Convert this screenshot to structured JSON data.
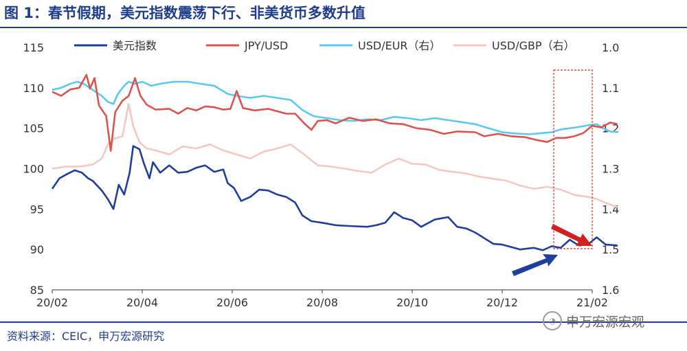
{
  "page": {
    "title": "图 1：春节假期，美元指数震荡下行、非美货币多数升值",
    "source": "资料来源：CEIC，申万宏源研究",
    "watermark": "申万宏源宏观"
  },
  "chart_data": {
    "type": "line",
    "x_ticks": [
      "20/02",
      "20/04",
      "20/06",
      "20/08",
      "20/10",
      "20/12",
      "21/02"
    ],
    "ylim_left": [
      85,
      115
    ],
    "yticks_left": [
      "85",
      "90",
      "95",
      "100",
      "105",
      "110",
      "115"
    ],
    "ylim_right": [
      1.6,
      1.0
    ],
    "yticks_right": [
      "1.0",
      "1.1",
      "1.2",
      "1.3",
      "1.4",
      "1.5",
      "1.6"
    ],
    "right_axis_inverted": true,
    "grid": false,
    "legend_position": "top",
    "series": [
      {
        "name": "美元指数",
        "axis": "left",
        "color": "#1f3d9a",
        "points": [
          [
            0,
            97.5
          ],
          [
            0.08,
            98.8
          ],
          [
            0.16,
            99.3
          ],
          [
            0.25,
            99.8
          ],
          [
            0.33,
            99.5
          ],
          [
            0.4,
            98.8
          ],
          [
            0.45,
            98.5
          ],
          [
            0.55,
            97.3
          ],
          [
            0.62,
            96.2
          ],
          [
            0.68,
            95.0
          ],
          [
            0.74,
            98.0
          ],
          [
            0.8,
            96.8
          ],
          [
            0.86,
            99.5
          ],
          [
            0.9,
            102.8
          ],
          [
            0.97,
            102.4
          ],
          [
            1.02,
            100.6
          ],
          [
            1.08,
            98.8
          ],
          [
            1.12,
            100.8
          ],
          [
            1.2,
            99.5
          ],
          [
            1.3,
            100.4
          ],
          [
            1.4,
            99.5
          ],
          [
            1.5,
            99.6
          ],
          [
            1.6,
            100.1
          ],
          [
            1.7,
            100.4
          ],
          [
            1.8,
            99.6
          ],
          [
            1.9,
            99.9
          ],
          [
            1.95,
            98.2
          ],
          [
            2.02,
            97.6
          ],
          [
            2.1,
            96.0
          ],
          [
            2.2,
            96.5
          ],
          [
            2.3,
            97.4
          ],
          [
            2.4,
            97.3
          ],
          [
            2.5,
            96.8
          ],
          [
            2.6,
            96.5
          ],
          [
            2.7,
            95.8
          ],
          [
            2.78,
            94.2
          ],
          [
            2.88,
            93.5
          ],
          [
            3.0,
            93.3
          ],
          [
            3.15,
            93.0
          ],
          [
            3.3,
            92.9
          ],
          [
            3.5,
            92.8
          ],
          [
            3.6,
            93.0
          ],
          [
            3.7,
            93.3
          ],
          [
            3.8,
            94.6
          ],
          [
            3.9,
            93.9
          ],
          [
            4.0,
            93.6
          ],
          [
            4.1,
            92.8
          ],
          [
            4.25,
            93.7
          ],
          [
            4.4,
            94.0
          ],
          [
            4.5,
            92.8
          ],
          [
            4.6,
            92.6
          ],
          [
            4.7,
            92.1
          ],
          [
            4.8,
            91.4
          ],
          [
            4.9,
            90.7
          ],
          [
            5.0,
            90.6
          ],
          [
            5.1,
            90.3
          ],
          [
            5.2,
            90.0
          ],
          [
            5.35,
            90.2
          ],
          [
            5.45,
            89.9
          ],
          [
            5.55,
            90.4
          ],
          [
            5.65,
            90.2
          ],
          [
            5.75,
            91.2
          ],
          [
            5.85,
            90.5
          ],
          [
            5.95,
            90.6
          ],
          [
            6.05,
            91.5
          ],
          [
            6.15,
            90.6
          ],
          [
            6.28,
            90.5
          ]
        ]
      },
      {
        "name": "JPY/USD",
        "axis": "left",
        "color": "#d9534f",
        "points": [
          [
            0,
            109.5
          ],
          [
            0.1,
            109.0
          ],
          [
            0.2,
            109.8
          ],
          [
            0.3,
            110.0
          ],
          [
            0.38,
            111.6
          ],
          [
            0.42,
            109.9
          ],
          [
            0.47,
            111.2
          ],
          [
            0.52,
            107.8
          ],
          [
            0.6,
            106.5
          ],
          [
            0.65,
            102.2
          ],
          [
            0.7,
            107.0
          ],
          [
            0.78,
            108.4
          ],
          [
            0.85,
            109.0
          ],
          [
            0.92,
            111.2
          ],
          [
            0.98,
            109.0
          ],
          [
            1.05,
            107.9
          ],
          [
            1.15,
            107.3
          ],
          [
            1.3,
            107.4
          ],
          [
            1.4,
            106.8
          ],
          [
            1.5,
            107.5
          ],
          [
            1.6,
            107.2
          ],
          [
            1.7,
            107.7
          ],
          [
            1.8,
            107.6
          ],
          [
            1.9,
            107.3
          ],
          [
            1.98,
            107.4
          ],
          [
            2.05,
            109.6
          ],
          [
            2.12,
            107.5
          ],
          [
            2.25,
            107.2
          ],
          [
            2.4,
            107.4
          ],
          [
            2.5,
            107.1
          ],
          [
            2.6,
            106.8
          ],
          [
            2.7,
            106.8
          ],
          [
            2.8,
            105.6
          ],
          [
            2.88,
            104.8
          ],
          [
            2.95,
            105.9
          ],
          [
            3.05,
            106.0
          ],
          [
            3.15,
            105.6
          ],
          [
            3.3,
            106.3
          ],
          [
            3.45,
            105.9
          ],
          [
            3.6,
            106.1
          ],
          [
            3.75,
            105.6
          ],
          [
            3.9,
            105.5
          ],
          [
            4.05,
            105.0
          ],
          [
            4.2,
            104.8
          ],
          [
            4.35,
            104.3
          ],
          [
            4.5,
            104.6
          ],
          [
            4.7,
            104.5
          ],
          [
            4.8,
            104.0
          ],
          [
            4.95,
            104.3
          ],
          [
            5.1,
            104.0
          ],
          [
            5.25,
            103.9
          ],
          [
            5.4,
            103.5
          ],
          [
            5.5,
            103.3
          ],
          [
            5.6,
            103.8
          ],
          [
            5.7,
            103.8
          ],
          [
            5.8,
            104.0
          ],
          [
            5.9,
            104.4
          ],
          [
            6.0,
            105.3
          ],
          [
            6.1,
            105.1
          ],
          [
            6.2,
            105.7
          ],
          [
            6.28,
            105.5
          ]
        ]
      },
      {
        "name": "USD/EUR（右）",
        "axis": "right",
        "color": "#5bc8ef",
        "points": [
          [
            0,
            1.105
          ],
          [
            0.1,
            1.1
          ],
          [
            0.2,
            1.09
          ],
          [
            0.28,
            1.085
          ],
          [
            0.35,
            1.09
          ],
          [
            0.45,
            1.105
          ],
          [
            0.55,
            1.12
          ],
          [
            0.62,
            1.135
          ],
          [
            0.68,
            1.14
          ],
          [
            0.73,
            1.115
          ],
          [
            0.8,
            1.095
          ],
          [
            0.85,
            1.085
          ],
          [
            0.92,
            1.09
          ],
          [
            1.0,
            1.085
          ],
          [
            1.1,
            1.095
          ],
          [
            1.2,
            1.09
          ],
          [
            1.35,
            1.085
          ],
          [
            1.5,
            1.085
          ],
          [
            1.65,
            1.09
          ],
          [
            1.8,
            1.095
          ],
          [
            1.95,
            1.115
          ],
          [
            2.05,
            1.12
          ],
          [
            2.2,
            1.125
          ],
          [
            2.35,
            1.12
          ],
          [
            2.5,
            1.125
          ],
          [
            2.65,
            1.13
          ],
          [
            2.78,
            1.155
          ],
          [
            2.9,
            1.17
          ],
          [
            3.05,
            1.175
          ],
          [
            3.2,
            1.18
          ],
          [
            3.35,
            1.182
          ],
          [
            3.5,
            1.178
          ],
          [
            3.65,
            1.18
          ],
          [
            3.8,
            1.172
          ],
          [
            3.95,
            1.175
          ],
          [
            4.1,
            1.18
          ],
          [
            4.25,
            1.175
          ],
          [
            4.4,
            1.18
          ],
          [
            4.55,
            1.185
          ],
          [
            4.7,
            1.19
          ],
          [
            4.85,
            1.2
          ],
          [
            5.0,
            1.21
          ],
          [
            5.15,
            1.213
          ],
          [
            5.3,
            1.215
          ],
          [
            5.45,
            1.212
          ],
          [
            5.55,
            1.21
          ],
          [
            5.65,
            1.203
          ],
          [
            5.75,
            1.2
          ],
          [
            5.85,
            1.197
          ],
          [
            5.95,
            1.193
          ],
          [
            6.05,
            1.19
          ],
          [
            6.12,
            1.2
          ],
          [
            6.2,
            1.208
          ],
          [
            6.28,
            1.21
          ]
        ]
      },
      {
        "name": "USD/GBP（右）",
        "axis": "right",
        "color": "#f4c7c3",
        "points": [
          [
            0,
            1.3
          ],
          [
            0.15,
            1.295
          ],
          [
            0.3,
            1.295
          ],
          [
            0.45,
            1.29
          ],
          [
            0.55,
            1.275
          ],
          [
            0.62,
            1.24
          ],
          [
            0.7,
            1.225
          ],
          [
            0.78,
            1.22
          ],
          [
            0.85,
            1.14
          ],
          [
            0.9,
            1.195
          ],
          [
            0.97,
            1.235
          ],
          [
            1.05,
            1.25
          ],
          [
            1.15,
            1.255
          ],
          [
            1.3,
            1.265
          ],
          [
            1.45,
            1.245
          ],
          [
            1.6,
            1.25
          ],
          [
            1.75,
            1.24
          ],
          [
            1.9,
            1.255
          ],
          [
            2.05,
            1.265
          ],
          [
            2.2,
            1.275
          ],
          [
            2.35,
            1.258
          ],
          [
            2.5,
            1.25
          ],
          [
            2.65,
            1.24
          ],
          [
            2.8,
            1.265
          ],
          [
            2.95,
            1.292
          ],
          [
            3.1,
            1.295
          ],
          [
            3.25,
            1.3
          ],
          [
            3.4,
            1.306
          ],
          [
            3.55,
            1.31
          ],
          [
            3.7,
            1.29
          ],
          [
            3.85,
            1.275
          ],
          [
            4.0,
            1.288
          ],
          [
            4.15,
            1.29
          ],
          [
            4.3,
            1.303
          ],
          [
            4.45,
            1.308
          ],
          [
            4.6,
            1.312
          ],
          [
            4.75,
            1.32
          ],
          [
            4.9,
            1.325
          ],
          [
            5.05,
            1.33
          ],
          [
            5.2,
            1.342
          ],
          [
            5.35,
            1.35
          ],
          [
            5.5,
            1.345
          ],
          [
            5.65,
            1.352
          ],
          [
            5.8,
            1.365
          ],
          [
            5.95,
            1.37
          ],
          [
            6.05,
            1.375
          ],
          [
            6.15,
            1.385
          ],
          [
            6.28,
            1.395
          ]
        ]
      }
    ]
  }
}
